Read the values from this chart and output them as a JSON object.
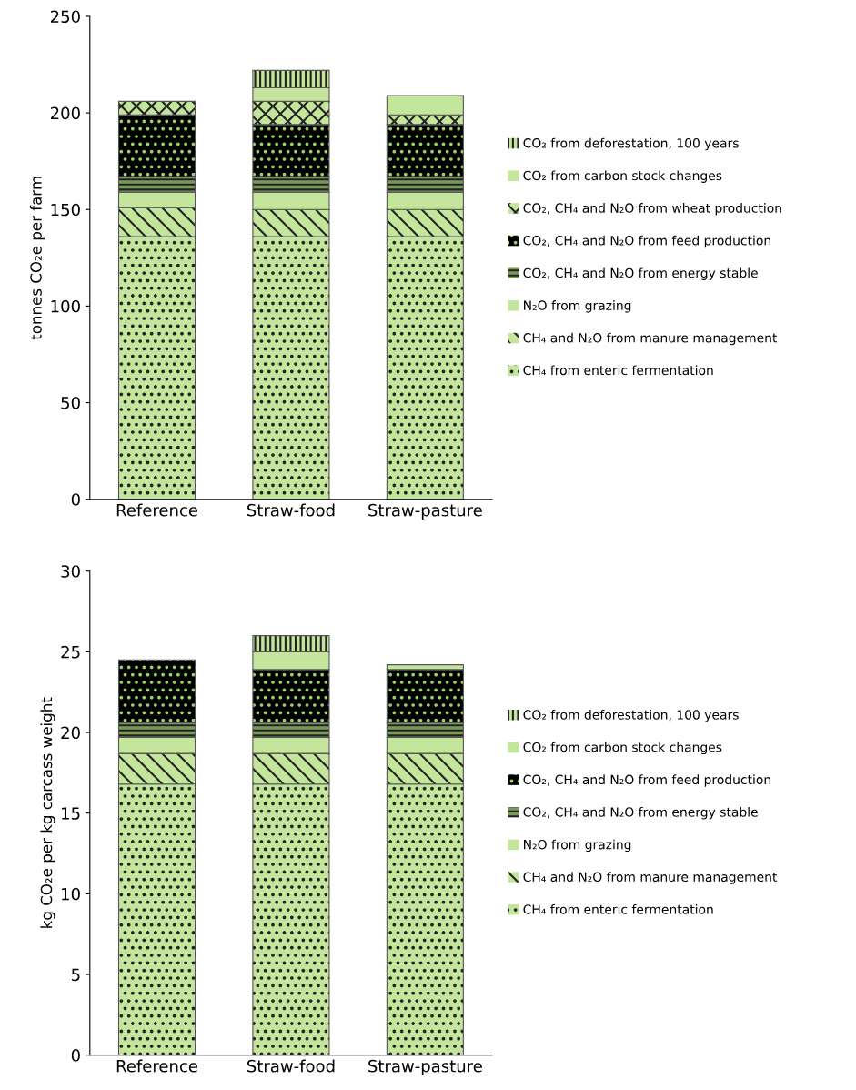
{
  "chart_data": [
    {
      "type": "bar",
      "stacked": true,
      "ylabel": "tonnes CO₂e per farm",
      "categories": [
        "Reference",
        "Straw-food",
        "Straw-pasture"
      ],
      "ylim": [
        0,
        250
      ],
      "yticks": [
        0,
        50,
        100,
        150,
        200,
        250
      ],
      "legend": "right",
      "grid": false,
      "series": [
        {
          "name": "CH₄ from enteric fermentation",
          "color": "#c4e59c",
          "values": [
            136,
            136,
            136
          ]
        },
        {
          "name": "CH₄ and N₂O from manure management",
          "color": "#c4e59c",
          "values": [
            15,
            14,
            14
          ]
        },
        {
          "name": "N₂O from grazing",
          "color": "#c4e59c",
          "values": [
            8,
            9,
            9
          ]
        },
        {
          "name": "CO₂, CH₄ and N₂O from energy stable",
          "color": "#7a9a5a",
          "values": [
            8,
            8,
            8
          ]
        },
        {
          "name": "CO₂, CH₄ and N₂O from feed production",
          "color": "#000000",
          "values": [
            32,
            27,
            27
          ]
        },
        {
          "name": "CO₂, CH₄ and N₂O from wheat production",
          "color": "#c4e59c",
          "values": [
            7,
            12,
            5
          ]
        },
        {
          "name": "CO₂ from carbon stock changes",
          "color": "#c4e59c",
          "values": [
            0,
            7,
            10
          ]
        },
        {
          "name": "CO₂ from deforestation, 100 years",
          "color": "#c4e59c",
          "values": [
            0,
            9,
            0
          ]
        }
      ]
    },
    {
      "type": "bar",
      "stacked": true,
      "ylabel": "kg CO₂e per kg carcass weight",
      "categories": [
        "Reference",
        "Straw-food",
        "Straw-pasture"
      ],
      "ylim": [
        0,
        30
      ],
      "yticks": [
        0,
        5,
        10,
        15,
        20,
        25,
        30
      ],
      "legend": "right",
      "grid": false,
      "series": [
        {
          "name": "CH₄ from enteric fermentation",
          "color": "#c4e59c",
          "values": [
            16.8,
            16.8,
            16.8
          ]
        },
        {
          "name": "CH₄ and N₂O from manure management",
          "color": "#c4e59c",
          "values": [
            1.9,
            1.9,
            1.9
          ]
        },
        {
          "name": "N₂O from grazing",
          "color": "#c4e59c",
          "values": [
            1.0,
            1.0,
            1.0
          ]
        },
        {
          "name": "CO₂, CH₄ and N₂O from energy stable",
          "color": "#7a9a5a",
          "values": [
            0.9,
            0.9,
            0.9
          ]
        },
        {
          "name": "CO₂, CH₄ and N₂O from feed production",
          "color": "#000000",
          "values": [
            3.9,
            3.3,
            3.3
          ]
        },
        {
          "name": "CO₂ from carbon stock changes",
          "color": "#c4e59c",
          "values": [
            0,
            1.1,
            0.3
          ]
        },
        {
          "name": "CO₂ from deforestation, 100 years",
          "color": "#c4e59c",
          "values": [
            0,
            1.0,
            0
          ]
        }
      ]
    }
  ]
}
